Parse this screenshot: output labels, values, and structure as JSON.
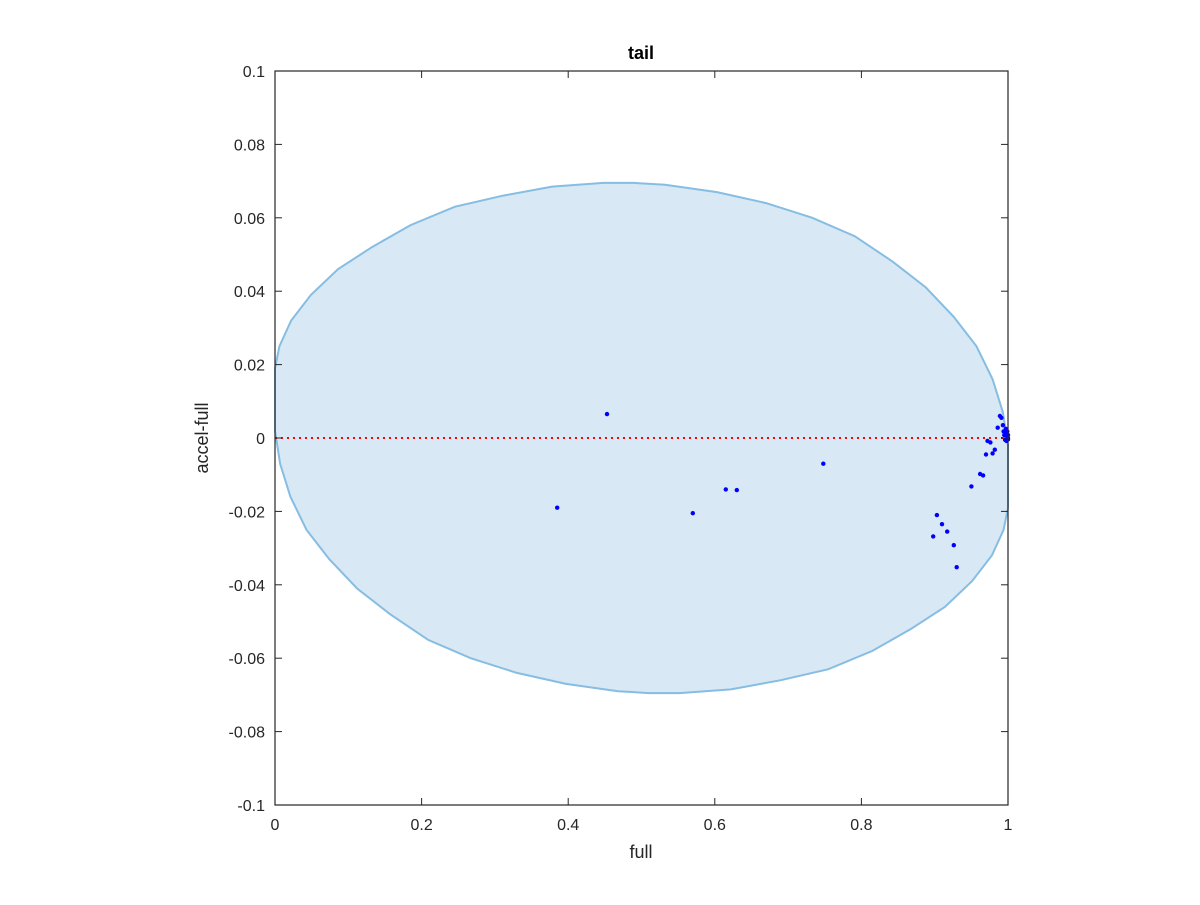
{
  "chart_data": {
    "type": "scatter",
    "title": "tail",
    "xlabel": "full",
    "ylabel": "accel-full",
    "xlim": [
      0,
      1
    ],
    "ylim": [
      -0.1,
      0.1
    ],
    "xticks": [
      "0",
      "0.2",
      "0.4",
      "0.6",
      "0.8",
      "1"
    ],
    "xtick_values": [
      0,
      0.2,
      0.4,
      0.6,
      0.8,
      1
    ],
    "yticks": [
      "-0.1",
      "-0.08",
      "-0.06",
      "-0.04",
      "-0.02",
      "0",
      "0.02",
      "0.04",
      "0.06",
      "0.08",
      "0.1"
    ],
    "ytick_values": [
      -0.1,
      -0.08,
      -0.06,
      -0.04,
      -0.02,
      0,
      0.02,
      0.04,
      0.06,
      0.08,
      0.1
    ],
    "grid": false,
    "colors": {
      "points": "#0000ff",
      "reference_line": "#ff0000",
      "ellipse_fill": "#d9e8f5",
      "ellipse_edge": "#86bde2",
      "axes": "#262626"
    },
    "reference_line": {
      "y": 0,
      "style": "dotted"
    },
    "region": {
      "shape": "ellipse",
      "outline": [
        [
          0.0,
          0.019
        ],
        [
          0.006,
          0.025
        ],
        [
          0.022,
          0.032
        ],
        [
          0.049,
          0.039
        ],
        [
          0.086,
          0.046
        ],
        [
          0.132,
          0.052
        ],
        [
          0.185,
          0.058
        ],
        [
          0.245,
          0.063
        ],
        [
          0.31,
          0.066
        ],
        [
          0.378,
          0.0685
        ],
        [
          0.448,
          0.0695
        ],
        [
          0.49,
          0.0695
        ],
        [
          0.532,
          0.069
        ],
        [
          0.603,
          0.067
        ],
        [
          0.67,
          0.064
        ],
        [
          0.733,
          0.06
        ],
        [
          0.791,
          0.055
        ],
        [
          0.843,
          0.048
        ],
        [
          0.888,
          0.041
        ],
        [
          0.926,
          0.033
        ],
        [
          0.957,
          0.025
        ],
        [
          0.979,
          0.016
        ],
        [
          0.993,
          0.007
        ],
        [
          1.0,
          -0.002
        ],
        [
          1.0,
          -0.019
        ],
        [
          0.994,
          -0.025
        ],
        [
          0.978,
          -0.032
        ],
        [
          0.951,
          -0.039
        ],
        [
          0.914,
          -0.046
        ],
        [
          0.868,
          -0.052
        ],
        [
          0.815,
          -0.058
        ],
        [
          0.755,
          -0.063
        ],
        [
          0.69,
          -0.066
        ],
        [
          0.622,
          -0.0685
        ],
        [
          0.552,
          -0.0695
        ],
        [
          0.51,
          -0.0695
        ],
        [
          0.468,
          -0.069
        ],
        [
          0.397,
          -0.067
        ],
        [
          0.33,
          -0.064
        ],
        [
          0.267,
          -0.06
        ],
        [
          0.209,
          -0.055
        ],
        [
          0.157,
          -0.048
        ],
        [
          0.112,
          -0.041
        ],
        [
          0.074,
          -0.033
        ],
        [
          0.043,
          -0.025
        ],
        [
          0.021,
          -0.016
        ],
        [
          0.007,
          -0.007
        ],
        [
          0.0,
          0.002
        ]
      ]
    },
    "series": [
      {
        "points": [
          [
            0.385,
            -0.019
          ],
          [
            0.453,
            0.0065
          ],
          [
            0.57,
            -0.0205
          ],
          [
            0.615,
            -0.014
          ],
          [
            0.63,
            -0.0142
          ],
          [
            0.748,
            -0.007
          ],
          [
            0.898,
            -0.0268
          ],
          [
            0.903,
            -0.021
          ],
          [
            0.91,
            -0.0235
          ],
          [
            0.917,
            -0.0255
          ],
          [
            0.926,
            -0.0292
          ],
          [
            0.93,
            -0.0352
          ],
          [
            0.95,
            -0.0132
          ],
          [
            0.962,
            -0.0098
          ],
          [
            0.966,
            -0.0102
          ],
          [
            0.97,
            -0.0045
          ],
          [
            0.972,
            -0.0008
          ],
          [
            0.976,
            -0.0012
          ],
          [
            0.979,
            -0.0042
          ],
          [
            0.982,
            -0.0032
          ],
          [
            0.986,
            0.0028
          ],
          [
            0.989,
            0.006
          ],
          [
            0.991,
            0.0055
          ],
          [
            0.993,
            0.0035
          ],
          [
            0.994,
            0.0018
          ],
          [
            0.995,
            0.0008
          ],
          [
            0.996,
            -0.0005
          ],
          [
            0.997,
            0.0025
          ],
          [
            0.998,
            0.0012
          ],
          [
            0.998,
            -0.0008
          ],
          [
            0.999,
            0.0004
          ],
          [
            0.999,
            0.0018
          ],
          [
            1.0,
            0.0
          ],
          [
            1.0,
            -0.0004
          ],
          [
            1.0,
            0.0008
          ]
        ]
      }
    ]
  }
}
